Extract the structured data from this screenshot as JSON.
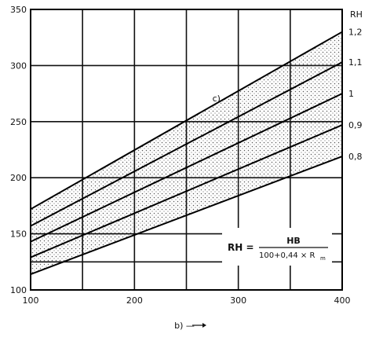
{
  "chart_data": {
    "type": "line",
    "xlim": [
      100,
      400
    ],
    "ylim": [
      100,
      350
    ],
    "x_ticks": [
      100,
      200,
      300,
      400
    ],
    "y_ticks": [
      100,
      150,
      200,
      250,
      300,
      350
    ],
    "x_grid": [
      150,
      200,
      250,
      300,
      350,
      400
    ],
    "y_grid": [
      125,
      150,
      200,
      250,
      300
    ],
    "grid": true,
    "xlabel": "b) —",
    "legend_title": "RH",
    "series": [
      {
        "name": "1,2",
        "points": [
          [
            100,
            172
          ],
          [
            400,
            330
          ]
        ]
      },
      {
        "name": "1,1",
        "points": [
          [
            100,
            157
          ],
          [
            400,
            303
          ]
        ]
      },
      {
        "name": "1",
        "points": [
          [
            100,
            143
          ],
          [
            400,
            275
          ]
        ]
      },
      {
        "name": "0,9",
        "points": [
          [
            100,
            129
          ],
          [
            400,
            247
          ]
        ]
      },
      {
        "name": "0,8",
        "points": [
          [
            100,
            114
          ],
          [
            400,
            219
          ]
        ]
      }
    ],
    "shaded_band": {
      "upper": "1,2",
      "lower": "0,8",
      "style": "dotted"
    },
    "annotations": [
      {
        "text": "c)",
        "x": 275,
        "y": 268
      },
      {
        "text": "RH =",
        "x": 295,
        "y": 128
      },
      {
        "text": "HB",
        "x": 348,
        "y": 134
      },
      {
        "text": "100+0,44 × R",
        "x": 346,
        "y": 119
      },
      {
        "text": "m",
        "x": 385,
        "y": 116
      }
    ]
  }
}
